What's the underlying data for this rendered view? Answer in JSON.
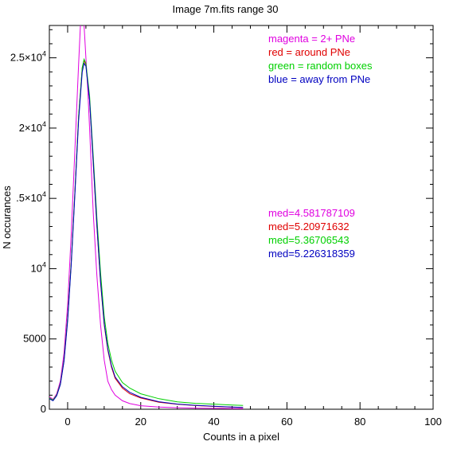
{
  "chart_data": {
    "type": "line",
    "title": "Image 7m.fits   range 30",
    "xlabel": "Counts in a pixel",
    "ylabel": "N occurances",
    "xlim": [
      -5,
      100
    ],
    "ylim": [
      0,
      27300
    ],
    "x_ticks": [
      {
        "value": 0,
        "label": "0"
      },
      {
        "value": 20,
        "label": "20"
      },
      {
        "value": 40,
        "label": "40"
      },
      {
        "value": 60,
        "label": "60"
      },
      {
        "value": 80,
        "label": "80"
      },
      {
        "value": 100,
        "label": "100"
      }
    ],
    "y_ticks": [
      {
        "value": 0,
        "label": "0"
      },
      {
        "value": 5000,
        "label": "5000"
      },
      {
        "value": 10000,
        "label": "10",
        "sup": "4"
      },
      {
        "value": 15000,
        "label": ".5×10",
        "sup": "4"
      },
      {
        "value": 20000,
        "label": "2×10",
        "sup": "4"
      },
      {
        "value": 25000,
        "label": "2.5×10",
        "sup": "4"
      }
    ],
    "legend": [
      {
        "text": "magenta = 2+ PNe",
        "color": "#e000e0"
      },
      {
        "text": "red = around PNe",
        "color": "#e00000"
      },
      {
        "text": "green = random boxes",
        "color": "#00d000"
      },
      {
        "text": "blue = away from PNe",
        "color": "#0000c0"
      }
    ],
    "medians": [
      {
        "text": "med=4.581787109",
        "color": "#e000e0"
      },
      {
        "text": "med=5.20971632",
        "color": "#e00000"
      },
      {
        "text": "med=5.36706543",
        "color": "#00d000"
      },
      {
        "text": "med=5.226318359",
        "color": "#0000c0"
      }
    ],
    "series": [
      {
        "color": "#e000e0",
        "x": [
          -5,
          -4,
          -3,
          -2,
          -1,
          0,
          1,
          2,
          3,
          3.5,
          4,
          4.5,
          5,
          5.5,
          6,
          7,
          8,
          9,
          10,
          11,
          12,
          13,
          15,
          17,
          20,
          25,
          30,
          35,
          40,
          45,
          48
        ],
        "y": [
          900,
          700,
          1100,
          2000,
          4000,
          7500,
          12500,
          18500,
          24500,
          27300,
          27800,
          27300,
          25000,
          22800,
          20000,
          14000,
          9500,
          6000,
          3500,
          2000,
          1400,
          1000,
          600,
          400,
          250,
          160,
          110,
          80,
          60,
          50,
          40
        ]
      },
      {
        "color": "#e00000",
        "x": [
          -5,
          -4,
          -3,
          -2,
          -1,
          0,
          1,
          2,
          3,
          4,
          4.5,
          5,
          6,
          7,
          8,
          9,
          10,
          11,
          12,
          13,
          15,
          17,
          20,
          25,
          30,
          35,
          40,
          45,
          48
        ],
        "y": [
          800,
          650,
          1000,
          1800,
          3500,
          6500,
          10500,
          15500,
          20800,
          24300,
          24800,
          24500,
          22000,
          17500,
          13000,
          9000,
          6000,
          4200,
          3000,
          2200,
          1500,
          1100,
          800,
          500,
          350,
          260,
          200,
          150,
          120
        ]
      },
      {
        "color": "#00d000",
        "x": [
          -5,
          -4,
          -3,
          -2,
          -1,
          0,
          1,
          2,
          3,
          4,
          4.5,
          5,
          6,
          7,
          8,
          9,
          10,
          11,
          12,
          13,
          15,
          17,
          20,
          25,
          30,
          35,
          40,
          45,
          48
        ],
        "y": [
          800,
          650,
          1000,
          1800,
          3500,
          6500,
          10500,
          15500,
          20800,
          24300,
          24900,
          24600,
          22300,
          18000,
          13600,
          9700,
          6600,
          4700,
          3500,
          2700,
          1900,
          1500,
          1100,
          750,
          520,
          420,
          360,
          300,
          270
        ]
      },
      {
        "color": "#0000c0",
        "x": [
          -5,
          -4,
          -3,
          -2,
          -1,
          0,
          1,
          2,
          3,
          4,
          4.5,
          5,
          6,
          7,
          8,
          9,
          10,
          11,
          12,
          13,
          15,
          17,
          20,
          25,
          30,
          35,
          40,
          45,
          48
        ],
        "y": [
          750,
          600,
          950,
          1750,
          3400,
          6300,
          10300,
          15300,
          20500,
          24000,
          24600,
          24400,
          22000,
          17600,
          13100,
          9100,
          6100,
          4300,
          3100,
          2300,
          1600,
          1200,
          850,
          530,
          370,
          280,
          210,
          160,
          130
        ]
      }
    ]
  }
}
